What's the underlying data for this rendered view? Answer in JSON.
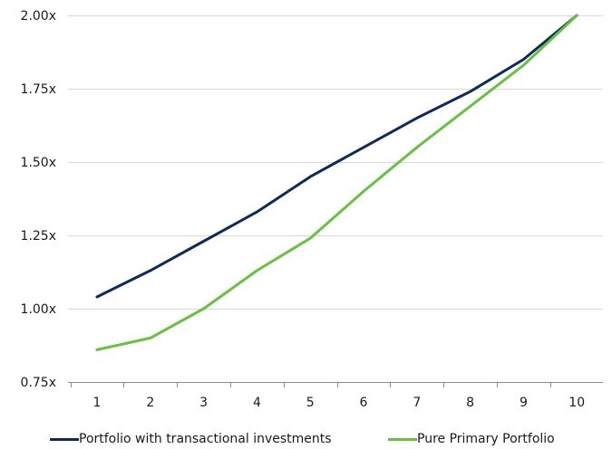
{
  "chart_data": {
    "type": "line",
    "x": [
      1,
      2,
      3,
      4,
      5,
      6,
      7,
      8,
      9,
      10
    ],
    "y_ticks": [
      "0.75x",
      "1.00x",
      "1.25x",
      "1.50x",
      "1.75x",
      "2.00x"
    ],
    "y_tick_values": [
      0.75,
      1.0,
      1.25,
      1.5,
      1.75,
      2.0
    ],
    "ylim": [
      0.75,
      2.0
    ],
    "grid": "horizontal",
    "legend_position": "bottom",
    "series": [
      {
        "name": "Portfolio with transactional investments",
        "color": "#0c2a5b",
        "values": [
          1.04,
          1.13,
          1.23,
          1.33,
          1.45,
          1.55,
          1.65,
          1.74,
          1.85,
          2.0
        ]
      },
      {
        "name": "Pure Primary Portfolio",
        "color": "#66c23f",
        "values": [
          0.86,
          0.9,
          1.0,
          1.13,
          1.24,
          1.4,
          1.55,
          1.69,
          1.83,
          2.0
        ]
      }
    ]
  }
}
